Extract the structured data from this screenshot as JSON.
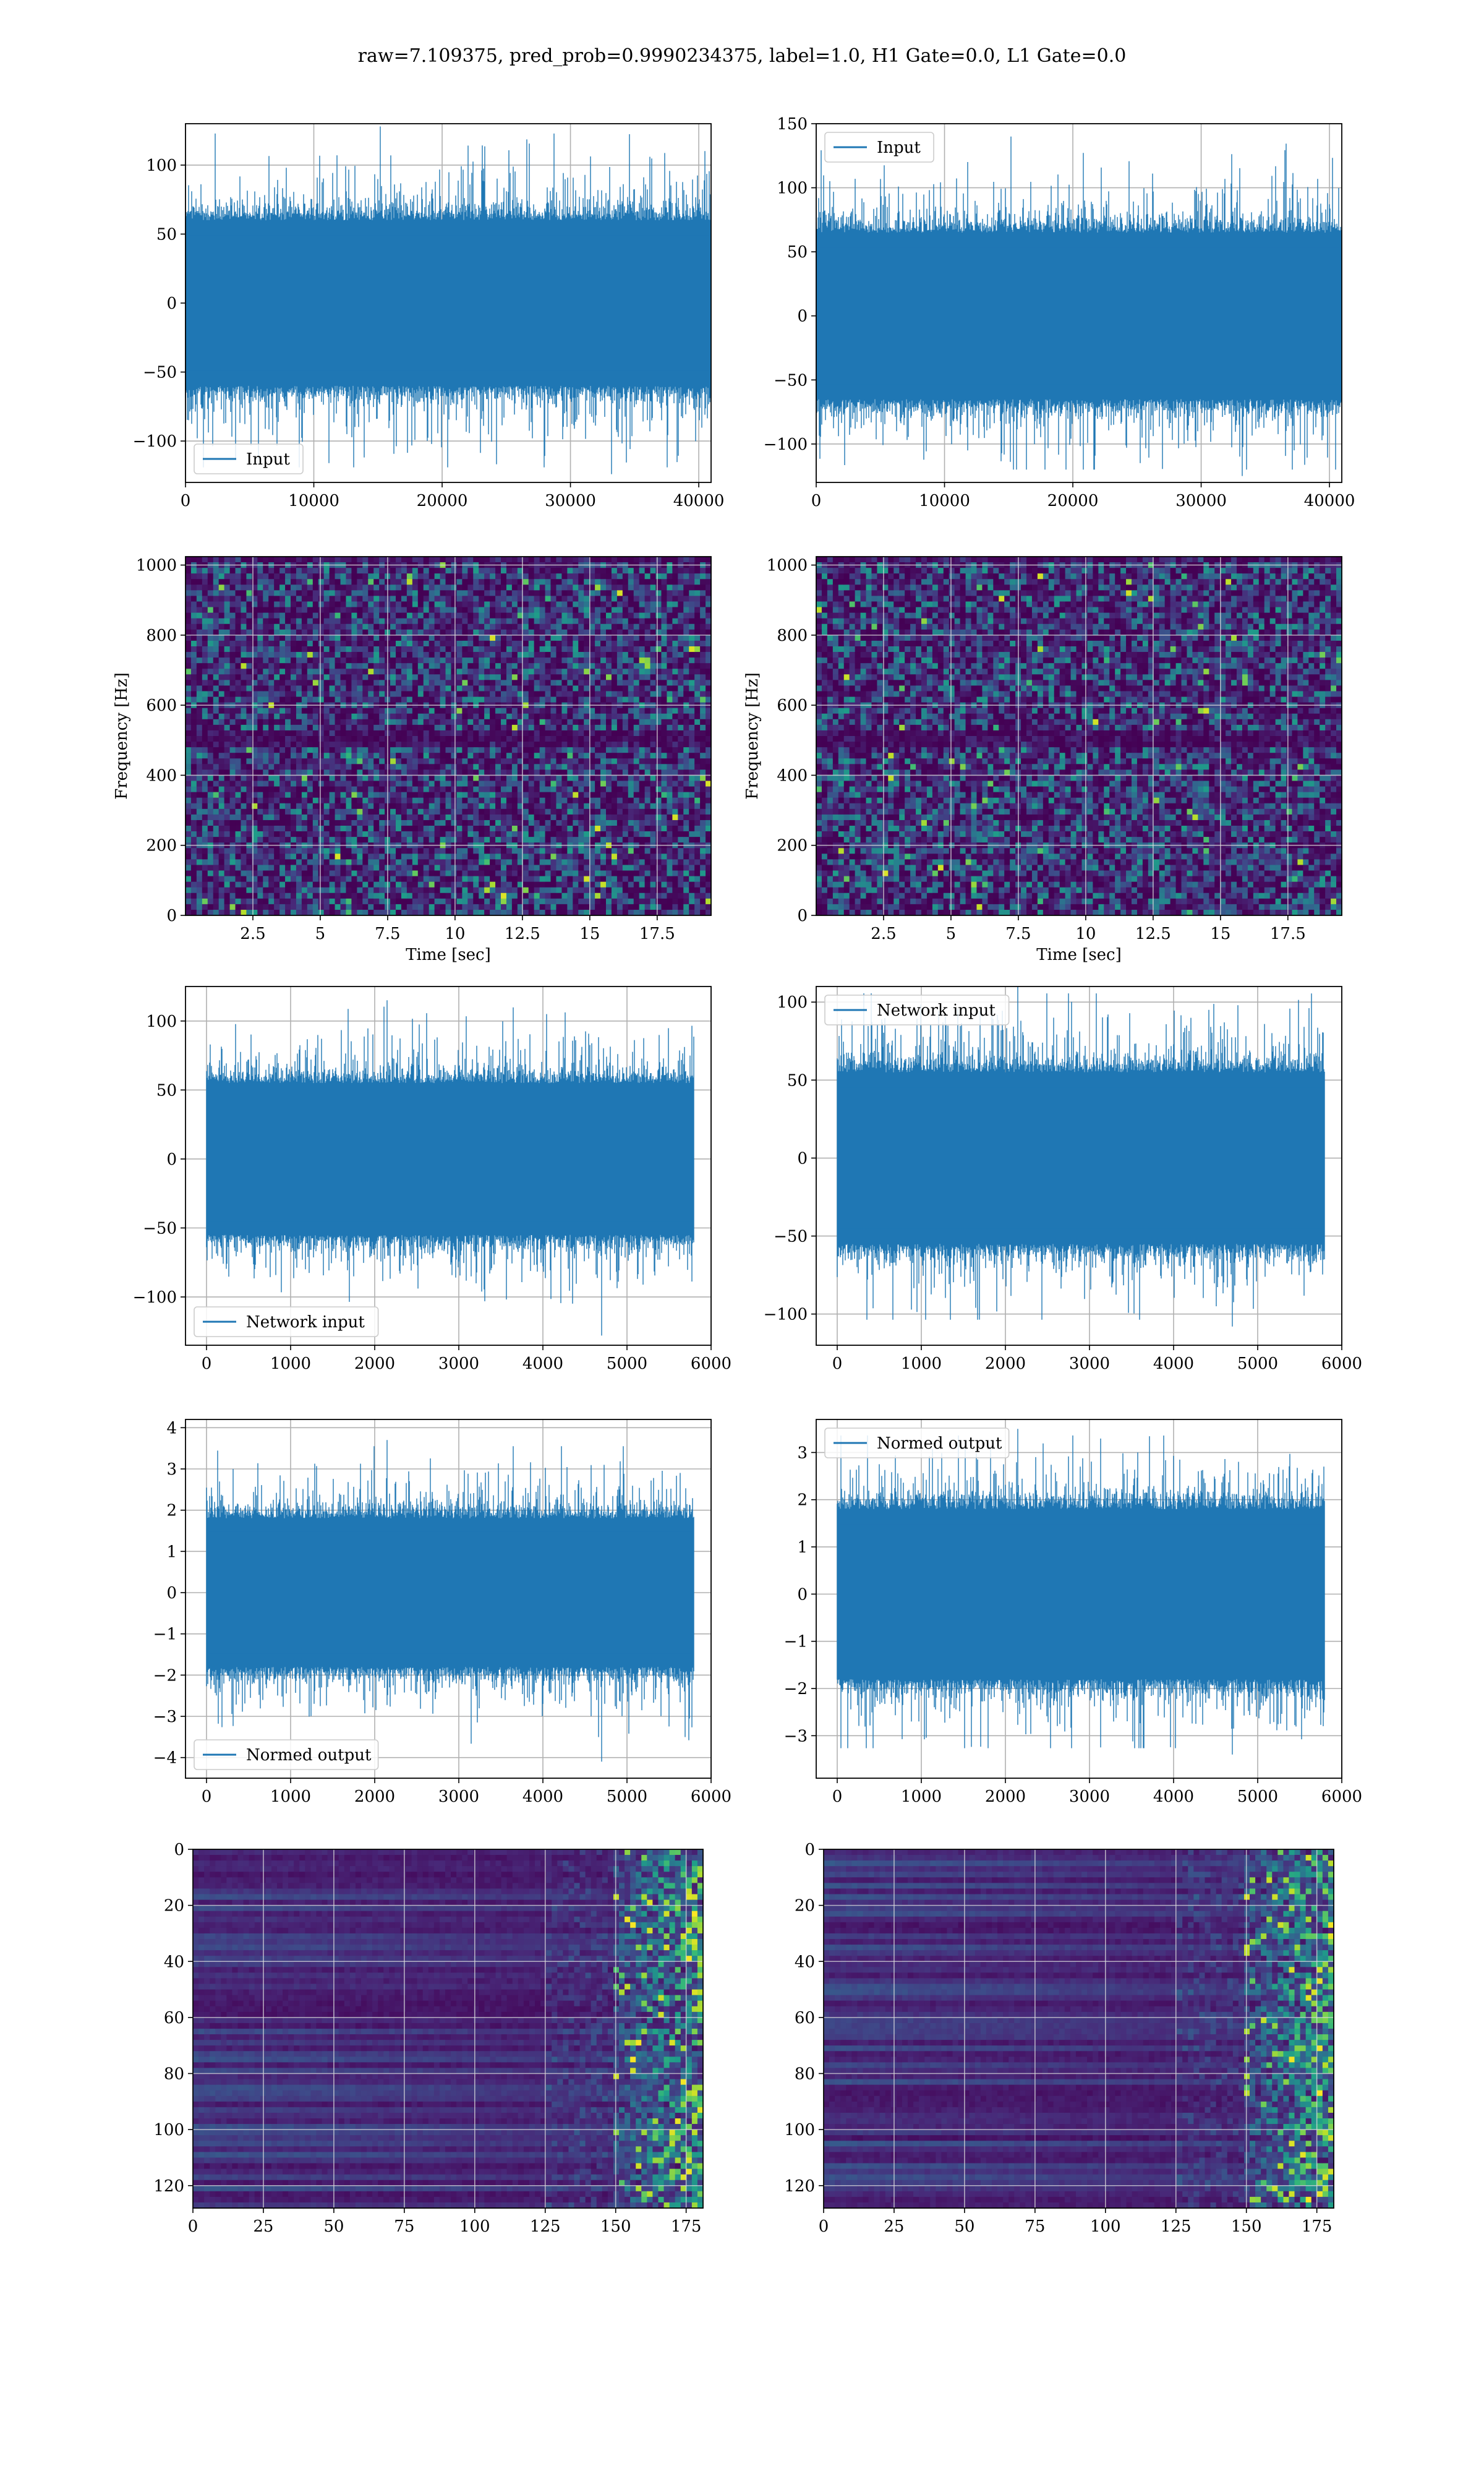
{
  "figure": {
    "suptitle": "raw=7.109375, pred_prob=0.9990234375, label=1.0, H1 Gate=0.0, L1 Gate=0.0"
  },
  "colors": {
    "line": "#1f77b4",
    "grid": "#b0b0b0",
    "viridis_low": "#440154",
    "viridis_mid": "#21918c",
    "viridis_high": "#fde725"
  },
  "chart_data": [
    {
      "id": "input-h1",
      "type": "line",
      "legend": "Input",
      "legend_loc": "lower left",
      "xlim": [
        0,
        40960
      ],
      "ylim": [
        -130,
        130
      ],
      "x_ticks": [
        0,
        10000,
        20000,
        30000,
        40000
      ],
      "y_ticks": [
        -100,
        -50,
        0,
        50,
        100
      ],
      "series": [
        {
          "name": "Input",
          "n_samples": 40960,
          "typical_range": [
            -60,
            60
          ],
          "max": 128,
          "min": -124
        }
      ]
    },
    {
      "id": "input-l1",
      "type": "line",
      "legend": "Input",
      "legend_loc": "upper left",
      "xlim": [
        0,
        40960
      ],
      "ylim": [
        -130,
        150
      ],
      "x_ticks": [
        0,
        10000,
        20000,
        30000,
        40000
      ],
      "y_ticks": [
        -100,
        -50,
        0,
        50,
        100,
        150
      ],
      "series": [
        {
          "name": "Input",
          "n_samples": 40960,
          "typical_range": [
            -65,
            65
          ],
          "max": 140,
          "min": -125
        }
      ]
    },
    {
      "id": "spec-h1",
      "type": "heatmap",
      "colormap": "viridis",
      "xlabel": "Time [sec]",
      "ylabel": "Frequency [Hz]",
      "xlim": [
        0,
        19.5
      ],
      "ylim": [
        0,
        1024
      ],
      "x_ticks": [
        2.5,
        5.0,
        7.5,
        10.0,
        12.5,
        15.0,
        17.5
      ],
      "y_ticks": [
        0,
        200,
        400,
        600,
        800,
        1000
      ]
    },
    {
      "id": "spec-l1",
      "type": "heatmap",
      "colormap": "viridis",
      "xlabel": "Time [sec]",
      "ylabel": "Frequency [Hz]",
      "xlim": [
        0,
        19.5
      ],
      "ylim": [
        0,
        1024
      ],
      "x_ticks": [
        2.5,
        5.0,
        7.5,
        10.0,
        12.5,
        15.0,
        17.5
      ],
      "y_ticks": [
        0,
        200,
        400,
        600,
        800,
        1000
      ]
    },
    {
      "id": "netin-h1",
      "type": "line",
      "legend": "Network input",
      "legend_loc": "lower left",
      "xlim": [
        -250,
        6000
      ],
      "ylim": [
        -135,
        125
      ],
      "x_ticks": [
        0,
        1000,
        2000,
        3000,
        4000,
        5000,
        6000
      ],
      "y_ticks": [
        -100,
        -50,
        0,
        50,
        100
      ],
      "series": [
        {
          "name": "Network input",
          "n_samples": 5800,
          "typical_range": [
            -55,
            55
          ],
          "max": 115,
          "min": -128
        }
      ]
    },
    {
      "id": "netin-l1",
      "type": "line",
      "legend": "Network input",
      "legend_loc": "upper left",
      "xlim": [
        -250,
        6000
      ],
      "ylim": [
        -120,
        110
      ],
      "x_ticks": [
        0,
        1000,
        2000,
        3000,
        4000,
        5000,
        6000
      ],
      "y_ticks": [
        -100,
        -50,
        0,
        50,
        100
      ],
      "series": [
        {
          "name": "Network input",
          "n_samples": 5800,
          "typical_range": [
            -55,
            55
          ],
          "max": 110,
          "min": -108
        }
      ]
    },
    {
      "id": "normed-h1",
      "type": "line",
      "legend": "Normed output",
      "legend_loc": "lower left",
      "xlim": [
        -250,
        6000
      ],
      "ylim": [
        -4.5,
        4.2
      ],
      "x_ticks": [
        0,
        1000,
        2000,
        3000,
        4000,
        5000,
        6000
      ],
      "y_ticks": [
        -4,
        -3,
        -2,
        -1,
        0,
        1,
        2,
        3,
        4
      ],
      "series": [
        {
          "name": "Normed output",
          "n_samples": 5800,
          "typical_range": [
            -1.8,
            1.8
          ],
          "max": 3.7,
          "min": -4.1
        }
      ]
    },
    {
      "id": "normed-l1",
      "type": "line",
      "legend": "Normed output",
      "legend_loc": "upper left",
      "xlim": [
        -250,
        6000
      ],
      "ylim": [
        -3.9,
        3.7
      ],
      "x_ticks": [
        0,
        1000,
        2000,
        3000,
        4000,
        5000,
        6000
      ],
      "y_ticks": [
        -3,
        -2,
        -1,
        0,
        1,
        2,
        3
      ],
      "series": [
        {
          "name": "Normed output",
          "n_samples": 5800,
          "typical_range": [
            -1.8,
            1.8
          ],
          "max": 3.5,
          "min": -3.4
        }
      ]
    },
    {
      "id": "feat-h1",
      "type": "heatmap",
      "colormap": "viridis",
      "xlim": [
        0,
        181
      ],
      "ylim": [
        128,
        0
      ],
      "x_ticks": [
        0,
        25,
        50,
        75,
        100,
        125,
        150,
        175
      ],
      "y_ticks": [
        0,
        20,
        40,
        60,
        80,
        100,
        120
      ],
      "bright_columns": [
        150,
        181
      ]
    },
    {
      "id": "feat-l1",
      "type": "heatmap",
      "colormap": "viridis",
      "xlim": [
        0,
        181
      ],
      "ylim": [
        128,
        0
      ],
      "x_ticks": [
        0,
        25,
        50,
        75,
        100,
        125,
        150,
        175
      ],
      "y_ticks": [
        0,
        20,
        40,
        60,
        80,
        100,
        120
      ],
      "bright_columns": [
        150,
        181
      ]
    }
  ]
}
